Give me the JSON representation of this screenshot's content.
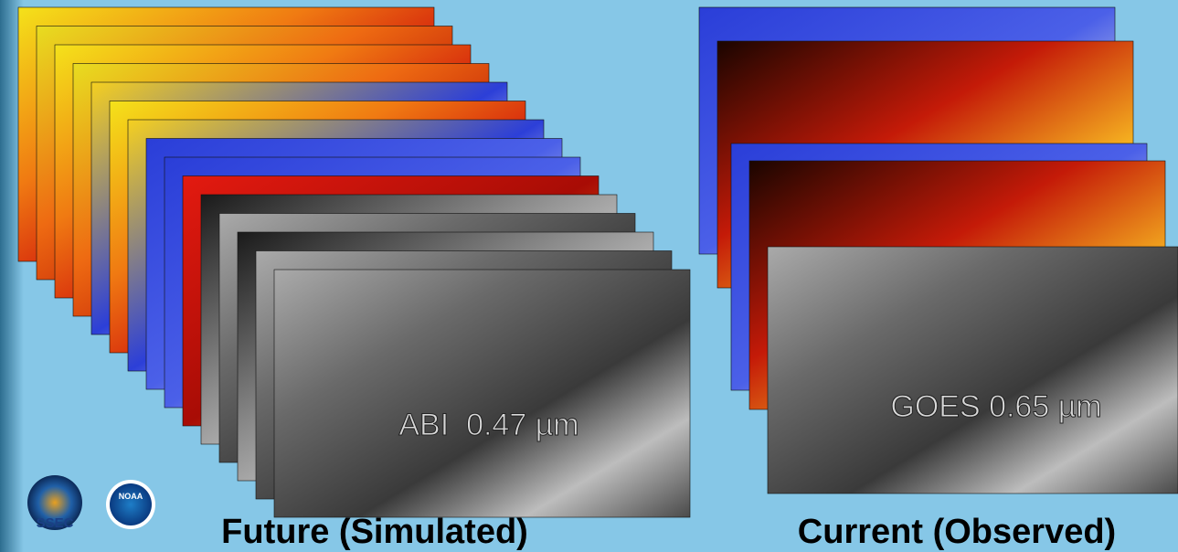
{
  "slide": {
    "left_panel": {
      "label": "ABI  0.47 µm",
      "caption": "Future (Simulated)"
    },
    "right_panel": {
      "label": "GOES 0.65 µm",
      "caption": "Current (Observed)"
    },
    "logos": [
      "SSEC",
      "NOAA"
    ]
  }
}
